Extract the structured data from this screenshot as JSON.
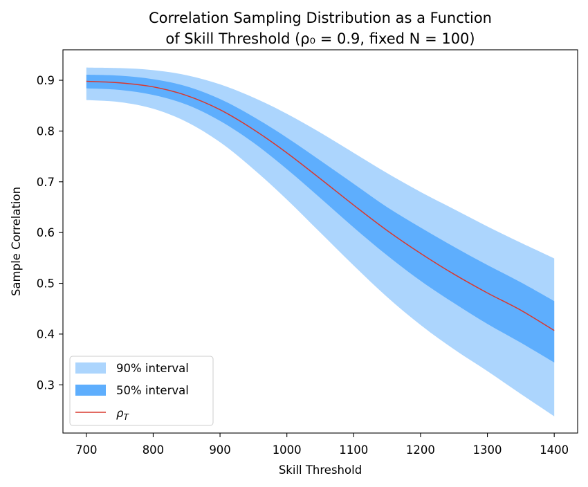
{
  "chart_data": {
    "type": "area",
    "title_line1": "Correlation Sampling Distribution as a Function",
    "title_line2": "of Skill Threshold (ρ₀ = 0.9, fixed N = 100)",
    "xlabel": "Skill Threshold",
    "ylabel": "Sample Correlation",
    "xlim": [
      665,
      1435
    ],
    "ylim": [
      0.205,
      0.96
    ],
    "xticks": [
      700,
      800,
      900,
      1000,
      1100,
      1200,
      1300,
      1400
    ],
    "yticks": [
      0.3,
      0.4,
      0.5,
      0.6,
      0.7,
      0.8,
      0.9
    ],
    "x": [
      700,
      750,
      800,
      850,
      900,
      950,
      1000,
      1050,
      1100,
      1150,
      1200,
      1250,
      1300,
      1350,
      1400
    ],
    "rho_T": [
      0.898,
      0.895,
      0.887,
      0.87,
      0.842,
      0.803,
      0.757,
      0.706,
      0.654,
      0.604,
      0.559,
      0.518,
      0.481,
      0.447,
      0.407
    ],
    "lower50": [
      0.884,
      0.881,
      0.871,
      0.852,
      0.82,
      0.777,
      0.725,
      0.668,
      0.61,
      0.555,
      0.505,
      0.461,
      0.42,
      0.383,
      0.344
    ],
    "upper50": [
      0.911,
      0.909,
      0.902,
      0.888,
      0.863,
      0.828,
      0.787,
      0.742,
      0.696,
      0.65,
      0.61,
      0.572,
      0.536,
      0.502,
      0.465
    ],
    "lower90": [
      0.861,
      0.857,
      0.844,
      0.818,
      0.778,
      0.725,
      0.665,
      0.6,
      0.535,
      0.473,
      0.418,
      0.37,
      0.327,
      0.282,
      0.238
    ],
    "upper90": [
      0.925,
      0.924,
      0.92,
      0.91,
      0.892,
      0.866,
      0.834,
      0.797,
      0.757,
      0.717,
      0.68,
      0.646,
      0.612,
      0.58,
      0.549
    ],
    "legend": {
      "placement": "lower-left",
      "entries": [
        {
          "label": "90% interval",
          "color": "#acd5fd"
        },
        {
          "label": "50% interval",
          "color": "#5eaefd"
        },
        {
          "label": "ρT",
          "color": "#d9382e"
        }
      ]
    },
    "grid": false
  }
}
